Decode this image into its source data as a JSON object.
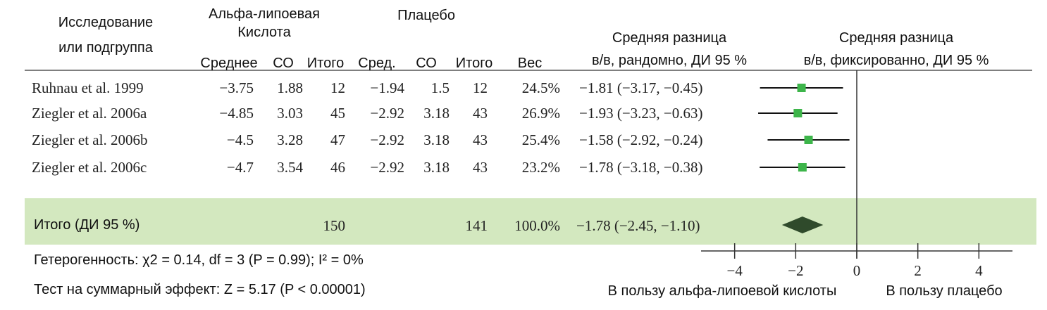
{
  "chart_data": {
    "type": "forest",
    "headers": {
      "study": [
        "Исследование",
        "или подгруппа"
      ],
      "experimental": [
        "Альфа-липоевая",
        "Кислота"
      ],
      "control": "Плацебо",
      "columns": [
        "Среднее",
        "СО",
        "Итого",
        "Сред.",
        "СО",
        "Итого",
        "Вес"
      ],
      "random": [
        "Средняя разница",
        "в/в, рандомно, ДИ 95 %"
      ],
      "fixed": [
        "Средняя разница",
        "в/в, фиксированно, ДИ 95 %"
      ]
    },
    "rows": [
      {
        "study": "Ruhnau et al. 1999",
        "exp_mean": "−3.75",
        "exp_sd": "1.88",
        "exp_total": "12",
        "ctl_mean": "−1.94",
        "ctl_sd": "1.5",
        "ctl_total": "12",
        "weight": "24.5%",
        "value": -1.81,
        "lower": -3.17,
        "upper": -0.45,
        "value_label": "−1.81 (−3.17, −0.45)"
      },
      {
        "study": "Ziegler et al. 2006a",
        "exp_mean": "−4.85",
        "exp_sd": "3.03",
        "exp_total": "45",
        "ctl_mean": "−2.92",
        "ctl_sd": "3.18",
        "ctl_total": "43",
        "weight": "26.9%",
        "value": -1.93,
        "lower": -3.23,
        "upper": -0.63,
        "value_label": "−1.93 (−3.23, −0.63)"
      },
      {
        "study": "Ziegler et al. 2006b",
        "exp_mean": "−4.5",
        "exp_sd": "3.28",
        "exp_total": "47",
        "ctl_mean": "−2.92",
        "ctl_sd": "3.18",
        "ctl_total": "43",
        "weight": "25.4%",
        "value": -1.58,
        "lower": -2.92,
        "upper": -0.24,
        "value_label": "−1.58 (−2.92, −0.24)"
      },
      {
        "study": "Ziegler et al. 2006c",
        "exp_mean": "−4.7",
        "exp_sd": "3.54",
        "exp_total": "46",
        "ctl_mean": "−2.92",
        "ctl_sd": "3.18",
        "ctl_total": "43",
        "weight": "23.2%",
        "value": -1.78,
        "lower": -3.18,
        "upper": -0.38,
        "value_label": "−1.78 (−3.18, −0.38)"
      }
    ],
    "total": {
      "study": "Итого (ДИ 95 %)",
      "exp_total": "150",
      "ctl_total": "141",
      "weight": "100.0%",
      "value": -1.78,
      "lower": -2.45,
      "upper": -1.1,
      "value_label": "−1.78 (−2.45, −1.10)"
    },
    "heterogeneity": "Гетерогенность: χ2 = 0.14, df = 3 (P = 0.99); I² = 0%",
    "overall_test": "Тест на суммарный эффект: Z = 5.17 (P < 0.00001)",
    "xlim": [
      -5.1,
      5.1
    ],
    "xticks": [
      {
        "value": -4,
        "label": "−4"
      },
      {
        "value": -2,
        "label": "−2"
      },
      0,
      2,
      4
    ],
    "xlabel_left": "В пользу альфа-липоевой кислоты",
    "xlabel_right": "В пользу плацебо",
    "square_color": "#3db54a",
    "diamond_color": "#2f4a2b",
    "highlight_color": "#d3e8bf"
  }
}
